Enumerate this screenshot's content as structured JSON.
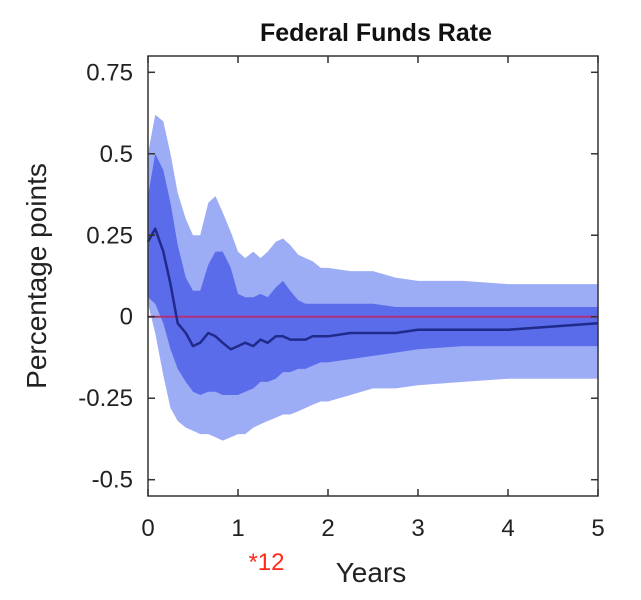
{
  "chart_data": {
    "type": "area",
    "title": "Federal Funds Rate",
    "xlabel": "Years",
    "ylabel": "Percentage points",
    "xlim": [
      0,
      5
    ],
    "ylim": [
      -0.55,
      0.8
    ],
    "xticks": [
      0,
      1,
      2,
      3,
      4,
      5
    ],
    "xtick_labels": [
      "0",
      "1",
      "2",
      "3",
      "4",
      "5"
    ],
    "yticks": [
      0.75,
      0.5,
      0.25,
      0,
      -0.25,
      -0.5
    ],
    "ytick_labels": [
      "0.75",
      "0.5",
      "0.25",
      "0",
      "-0.25",
      "-0.5"
    ],
    "grid": false,
    "annotation": {
      "text": "*12",
      "x": 1.25,
      "color": "#ff2a1a"
    },
    "zero_line_color": "#b0307a",
    "colors": {
      "outer_band": "#9dadf5",
      "inner_band": "#5b6ceb",
      "median": "#1f2a8a"
    },
    "x": [
      0.0,
      0.08,
      0.17,
      0.25,
      0.33,
      0.42,
      0.5,
      0.58,
      0.67,
      0.75,
      0.83,
      0.92,
      1.0,
      1.08,
      1.17,
      1.25,
      1.33,
      1.42,
      1.5,
      1.58,
      1.67,
      1.75,
      1.83,
      1.92,
      2.0,
      2.25,
      2.5,
      2.75,
      3.0,
      3.5,
      4.0,
      4.5,
      5.0
    ],
    "series": [
      {
        "role": "outer_band_upper",
        "values": [
          0.5,
          0.62,
          0.6,
          0.5,
          0.38,
          0.3,
          0.25,
          0.25,
          0.35,
          0.37,
          0.32,
          0.26,
          0.2,
          0.18,
          0.2,
          0.18,
          0.2,
          0.23,
          0.24,
          0.22,
          0.19,
          0.18,
          0.17,
          0.15,
          0.15,
          0.14,
          0.14,
          0.12,
          0.11,
          0.11,
          0.1,
          0.1,
          0.1
        ]
      },
      {
        "role": "inner_band_upper",
        "values": [
          0.37,
          0.5,
          0.45,
          0.35,
          0.22,
          0.12,
          0.08,
          0.08,
          0.16,
          0.2,
          0.2,
          0.15,
          0.07,
          0.06,
          0.06,
          0.07,
          0.06,
          0.09,
          0.11,
          0.08,
          0.05,
          0.04,
          0.04,
          0.04,
          0.04,
          0.04,
          0.04,
          0.03,
          0.03,
          0.03,
          0.03,
          0.03,
          0.03
        ]
      },
      {
        "role": "median",
        "values": [
          0.23,
          0.27,
          0.2,
          0.1,
          -0.02,
          -0.05,
          -0.09,
          -0.08,
          -0.05,
          -0.06,
          -0.08,
          -0.1,
          -0.09,
          -0.08,
          -0.09,
          -0.07,
          -0.08,
          -0.06,
          -0.06,
          -0.07,
          -0.07,
          -0.07,
          -0.06,
          -0.06,
          -0.06,
          -0.05,
          -0.05,
          -0.05,
          -0.04,
          -0.04,
          -0.04,
          -0.03,
          -0.02
        ]
      },
      {
        "role": "inner_band_lower",
        "values": [
          0.06,
          0.04,
          -0.02,
          -0.1,
          -0.16,
          -0.2,
          -0.23,
          -0.24,
          -0.23,
          -0.23,
          -0.24,
          -0.24,
          -0.24,
          -0.23,
          -0.22,
          -0.2,
          -0.2,
          -0.19,
          -0.17,
          -0.17,
          -0.16,
          -0.16,
          -0.15,
          -0.14,
          -0.14,
          -0.13,
          -0.12,
          -0.11,
          -0.1,
          -0.09,
          -0.09,
          -0.09,
          -0.09
        ]
      },
      {
        "role": "outer_band_lower",
        "values": [
          0.04,
          -0.05,
          -0.18,
          -0.28,
          -0.32,
          -0.34,
          -0.35,
          -0.36,
          -0.36,
          -0.37,
          -0.38,
          -0.37,
          -0.36,
          -0.36,
          -0.34,
          -0.33,
          -0.32,
          -0.31,
          -0.3,
          -0.3,
          -0.29,
          -0.28,
          -0.27,
          -0.26,
          -0.26,
          -0.24,
          -0.22,
          -0.22,
          -0.21,
          -0.2,
          -0.19,
          -0.19,
          -0.19
        ]
      }
    ]
  }
}
